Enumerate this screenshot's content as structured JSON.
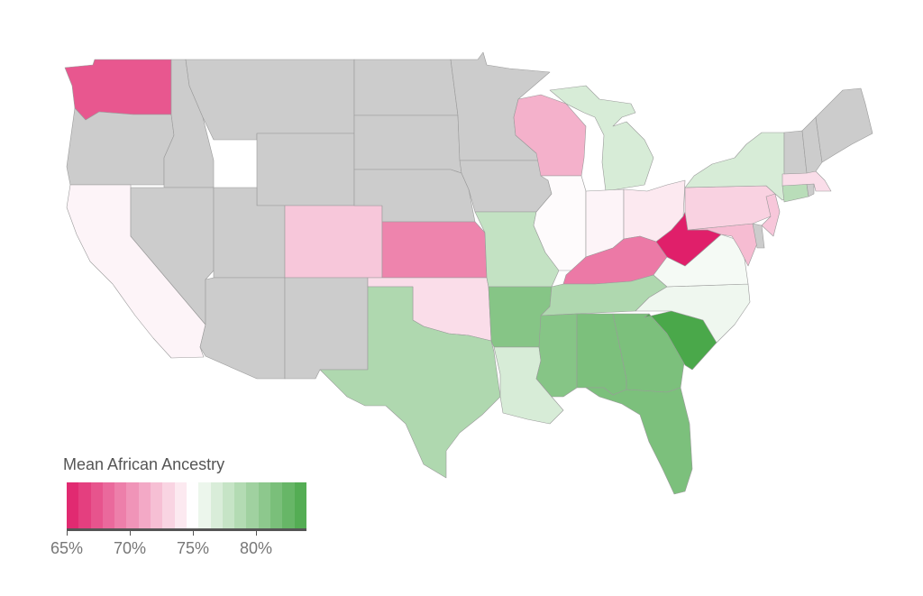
{
  "legend": {
    "title": "Mean African Ancestry",
    "ticks": [
      "65%",
      "70%",
      "75%",
      "80%"
    ],
    "tick_values": [
      65,
      70,
      75,
      80
    ],
    "range": [
      65,
      84
    ],
    "low_color": "#e01f6a",
    "mid_color": "#ffffff",
    "high_color": "#4aa84a",
    "no_data_color": "#cccccc"
  },
  "states": [
    {
      "name": "Washington",
      "value": 67.5
    },
    {
      "name": "Oregon",
      "value": null
    },
    {
      "name": "California",
      "value": 74.5
    },
    {
      "name": "Idaho",
      "value": null
    },
    {
      "name": "Nevada",
      "value": null
    },
    {
      "name": "Montana",
      "value": null
    },
    {
      "name": "Wyoming",
      "value": null
    },
    {
      "name": "Utah",
      "value": null
    },
    {
      "name": "Arizona",
      "value": null
    },
    {
      "name": "Colorado",
      "value": 72.5
    },
    {
      "name": "New Mexico",
      "value": null
    },
    {
      "name": "North Dakota",
      "value": null
    },
    {
      "name": "South Dakota",
      "value": null
    },
    {
      "name": "Nebraska",
      "value": null
    },
    {
      "name": "Kansas",
      "value": 69.5
    },
    {
      "name": "Oklahoma",
      "value": 73.5
    },
    {
      "name": "Texas",
      "value": 79
    },
    {
      "name": "Minnesota",
      "value": null
    },
    {
      "name": "Iowa",
      "value": null
    },
    {
      "name": "Missouri",
      "value": 78
    },
    {
      "name": "Arkansas",
      "value": 81
    },
    {
      "name": "Louisiana",
      "value": 77
    },
    {
      "name": "Wisconsin",
      "value": 71.5
    },
    {
      "name": "Illinois",
      "value": 74.8
    },
    {
      "name": "Michigan",
      "value": 77
    },
    {
      "name": "Indiana",
      "value": 74.5
    },
    {
      "name": "Ohio",
      "value": 74
    },
    {
      "name": "Kentucky",
      "value": 69
    },
    {
      "name": "Tennessee",
      "value": 79
    },
    {
      "name": "Mississippi",
      "value": 81
    },
    {
      "name": "Alabama",
      "value": 81.5
    },
    {
      "name": "Georgia",
      "value": 81.5
    },
    {
      "name": "Florida",
      "value": 81.5
    },
    {
      "name": "South Carolina",
      "value": 84
    },
    {
      "name": "North Carolina",
      "value": 75.8
    },
    {
      "name": "Virginia",
      "value": 75.5
    },
    {
      "name": "West Virginia",
      "value": 65
    },
    {
      "name": "Maryland",
      "value": 72
    },
    {
      "name": "Delaware",
      "value": null
    },
    {
      "name": "Pennsylvania",
      "value": 73
    },
    {
      "name": "New Jersey",
      "value": 72.5
    },
    {
      "name": "New York",
      "value": 77
    },
    {
      "name": "Connecticut",
      "value": 78.5
    },
    {
      "name": "Rhode Island",
      "value": null
    },
    {
      "name": "Massachusetts",
      "value": 73.5
    },
    {
      "name": "Vermont",
      "value": null
    },
    {
      "name": "New Hampshire",
      "value": null
    },
    {
      "name": "Maine",
      "value": null
    }
  ]
}
